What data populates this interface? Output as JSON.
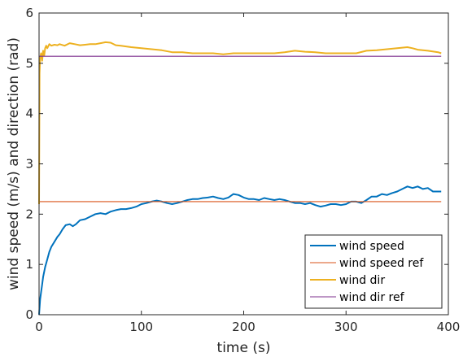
{
  "chart_data": {
    "type": "line",
    "title": "",
    "xlabel": "time (s)",
    "ylabel": "wind speed (m/s) and direction (rad)",
    "xlim": [
      0,
      400
    ],
    "ylim": [
      0,
      6
    ],
    "xticks": [
      0,
      100,
      200,
      300,
      400
    ],
    "yticks": [
      0,
      1,
      2,
      3,
      4,
      5,
      6
    ],
    "grid": false,
    "legend_position": "bottom-right",
    "series": [
      {
        "name": "wind speed",
        "color": "#0072BD",
        "x": [
          0,
          1,
          2,
          3,
          4,
          6,
          8,
          10,
          12,
          15,
          18,
          20,
          23,
          26,
          30,
          33,
          36,
          40,
          45,
          50,
          55,
          60,
          65,
          70,
          75,
          80,
          85,
          90,
          95,
          100,
          105,
          110,
          115,
          120,
          125,
          130,
          135,
          140,
          145,
          150,
          155,
          160,
          165,
          170,
          175,
          180,
          185,
          190,
          195,
          200,
          205,
          210,
          215,
          220,
          225,
          230,
          235,
          240,
          245,
          250,
          255,
          260,
          265,
          270,
          275,
          280,
          285,
          290,
          295,
          300,
          305,
          310,
          315,
          320,
          325,
          330,
          335,
          340,
          345,
          350,
          355,
          360,
          365,
          370,
          375,
          380,
          385,
          390,
          393
        ],
        "y": [
          0.0,
          0.3,
          0.45,
          0.6,
          0.75,
          0.95,
          1.1,
          1.25,
          1.35,
          1.45,
          1.55,
          1.6,
          1.7,
          1.78,
          1.8,
          1.76,
          1.8,
          1.88,
          1.9,
          1.95,
          2.0,
          2.02,
          2.0,
          2.05,
          2.08,
          2.1,
          2.1,
          2.12,
          2.15,
          2.2,
          2.22,
          2.25,
          2.27,
          2.25,
          2.22,
          2.2,
          2.22,
          2.25,
          2.28,
          2.3,
          2.3,
          2.32,
          2.33,
          2.35,
          2.32,
          2.3,
          2.33,
          2.4,
          2.38,
          2.33,
          2.3,
          2.3,
          2.28,
          2.32,
          2.3,
          2.28,
          2.3,
          2.28,
          2.25,
          2.22,
          2.22,
          2.2,
          2.22,
          2.18,
          2.15,
          2.17,
          2.2,
          2.2,
          2.18,
          2.2,
          2.25,
          2.25,
          2.22,
          2.28,
          2.35,
          2.35,
          2.4,
          2.38,
          2.42,
          2.45,
          2.5,
          2.55,
          2.52,
          2.55,
          2.5,
          2.52,
          2.45,
          2.45,
          2.45
        ]
      },
      {
        "name": "wind speed ref",
        "color": "#D95319",
        "x": [
          0,
          393
        ],
        "y": [
          2.25,
          2.25
        ]
      },
      {
        "name": "wind dir",
        "color": "#EDB120",
        "x": [
          0,
          0.5,
          1,
          2,
          3,
          4,
          5,
          6,
          7,
          8,
          10,
          12,
          15,
          18,
          20,
          25,
          30,
          35,
          40,
          45,
          50,
          55,
          60,
          65,
          70,
          75,
          80,
          90,
          100,
          110,
          120,
          130,
          140,
          150,
          160,
          170,
          180,
          190,
          200,
          210,
          220,
          230,
          240,
          250,
          260,
          270,
          280,
          290,
          300,
          310,
          320,
          330,
          340,
          350,
          360,
          365,
          370,
          380,
          390,
          393
        ],
        "y": [
          2.2,
          4.8,
          5.1,
          5.2,
          5.05,
          5.25,
          5.15,
          5.3,
          5.35,
          5.3,
          5.38,
          5.35,
          5.37,
          5.36,
          5.38,
          5.35,
          5.4,
          5.38,
          5.36,
          5.37,
          5.38,
          5.38,
          5.4,
          5.42,
          5.41,
          5.36,
          5.35,
          5.32,
          5.3,
          5.28,
          5.26,
          5.22,
          5.22,
          5.2,
          5.2,
          5.2,
          5.18,
          5.2,
          5.2,
          5.2,
          5.2,
          5.2,
          5.22,
          5.25,
          5.23,
          5.22,
          5.2,
          5.2,
          5.2,
          5.2,
          5.25,
          5.26,
          5.28,
          5.3,
          5.32,
          5.3,
          5.27,
          5.25,
          5.22,
          5.2
        ]
      },
      {
        "name": "wind dir ref",
        "color": "#7E2F8E",
        "x": [
          0,
          393
        ],
        "y": [
          5.14,
          5.14
        ]
      }
    ]
  }
}
